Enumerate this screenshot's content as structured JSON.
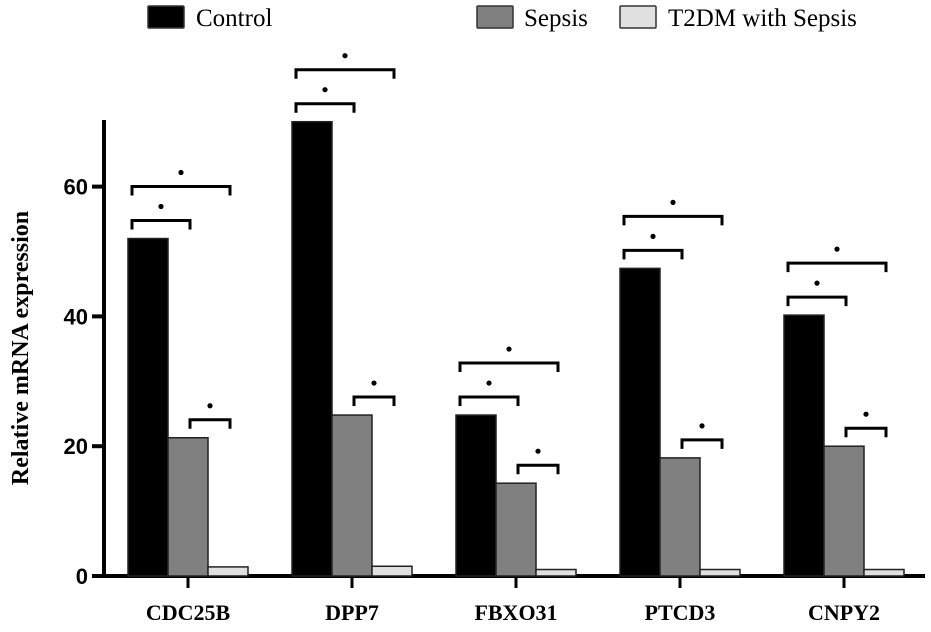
{
  "chart_data": {
    "type": "bar",
    "title": "",
    "xlabel": "",
    "ylabel": "Relative mRNA expression",
    "ylim": [
      0,
      70
    ],
    "yticks": [
      0,
      20,
      40,
      60
    ],
    "grid": false,
    "legend_position": "top",
    "categories": [
      "CDC25B",
      "DPP7",
      "FBXO31",
      "PTCD3",
      "CNPY2"
    ],
    "series": [
      {
        "name": "Control",
        "color": "#000000",
        "values": [
          52,
          70,
          24.8,
          47.4,
          40.2
        ]
      },
      {
        "name": "Sepsis",
        "color": "#808080",
        "values": [
          21.3,
          24.8,
          14.3,
          18.2,
          20.0
        ]
      },
      {
        "name": "T2DM with Sepsis",
        "color": "#e0e0e0",
        "values": [
          1.4,
          1.5,
          1.0,
          1.0,
          1.0
        ]
      }
    ],
    "significance": [
      {
        "pair": [
          "Control",
          "Sepsis"
        ],
        "label": "*"
      },
      {
        "pair": [
          "Control",
          "T2DM with Sepsis"
        ],
        "label": "*"
      },
      {
        "pair": [
          "Sepsis",
          "T2DM with Sepsis"
        ],
        "label": "*"
      }
    ]
  }
}
